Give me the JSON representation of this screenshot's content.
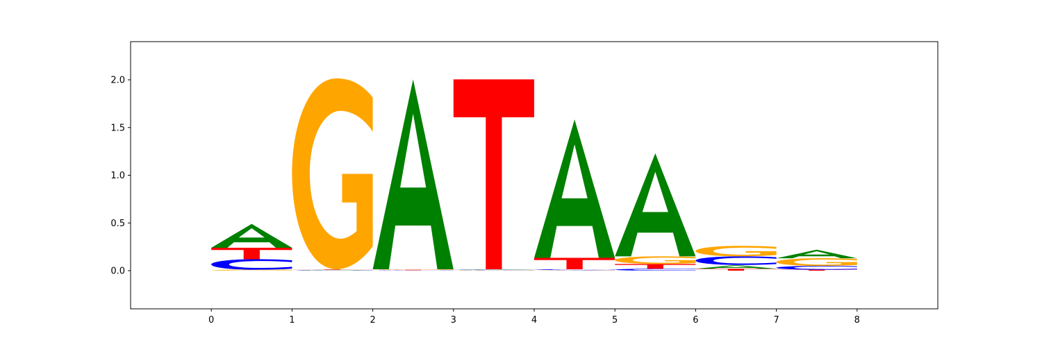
{
  "chart_data": {
    "type": "sequence-logo",
    "title": "",
    "xlabel": "",
    "ylabel": "",
    "xlim": [
      -1,
      9
    ],
    "ylim": [
      -0.4,
      2.4
    ],
    "x_ticks": [
      0,
      1,
      2,
      3,
      4,
      5,
      6,
      7,
      8
    ],
    "x_tick_labels": [
      "0",
      "1",
      "2",
      "3",
      "4",
      "5",
      "6",
      "7",
      "8"
    ],
    "y_ticks": [
      0.0,
      0.5,
      1.0,
      1.5,
      2.0
    ],
    "y_tick_labels": [
      "0.0",
      "0.5",
      "1.0",
      "1.5",
      "2.0"
    ],
    "grid": false,
    "colors": {
      "A": "#008000",
      "C": "#0000ff",
      "G": "#ffa500",
      "T": "#ff0000"
    },
    "positions": [
      {
        "x": 0,
        "stack": [
          {
            "base": "G",
            "height": 0.01
          },
          {
            "base": "C",
            "height": 0.11
          },
          {
            "base": "T",
            "height": 0.12
          },
          {
            "base": "A",
            "height": 0.25
          }
        ]
      },
      {
        "x": 1,
        "stack": [
          {
            "base": "C",
            "height": 0.005
          },
          {
            "base": "A",
            "height": 0.005
          },
          {
            "base": "T",
            "height": 0.005
          },
          {
            "base": "G",
            "height": 2.0
          }
        ]
      },
      {
        "x": 2,
        "stack": [
          {
            "base": "C",
            "height": 0.005
          },
          {
            "base": "T",
            "height": 0.005
          },
          {
            "base": "G",
            "height": 0.005
          },
          {
            "base": "A",
            "height": 1.99
          }
        ]
      },
      {
        "x": 3,
        "stack": [
          {
            "base": "G",
            "height": 0.005
          },
          {
            "base": "C",
            "height": 0.005
          },
          {
            "base": "A",
            "height": 0.005
          },
          {
            "base": "T",
            "height": 1.99
          }
        ]
      },
      {
        "x": 4,
        "stack": [
          {
            "base": "G",
            "height": 0.005
          },
          {
            "base": "C",
            "height": 0.01
          },
          {
            "base": "T",
            "height": 0.12
          },
          {
            "base": "A",
            "height": 1.45
          }
        ]
      },
      {
        "x": 5,
        "stack": [
          {
            "base": "C",
            "height": 0.02
          },
          {
            "base": "T",
            "height": 0.05
          },
          {
            "base": "G",
            "height": 0.08
          },
          {
            "base": "A",
            "height": 1.08
          }
        ]
      },
      {
        "x": 6,
        "stack": [
          {
            "base": "T",
            "height": 0.02
          },
          {
            "base": "A",
            "height": 0.04
          },
          {
            "base": "C",
            "height": 0.09
          },
          {
            "base": "G",
            "height": 0.11
          }
        ]
      },
      {
        "x": 7,
        "stack": [
          {
            "base": "T",
            "height": 0.01
          },
          {
            "base": "C",
            "height": 0.04
          },
          {
            "base": "G",
            "height": 0.08
          },
          {
            "base": "A",
            "height": 0.09
          }
        ]
      }
    ]
  }
}
